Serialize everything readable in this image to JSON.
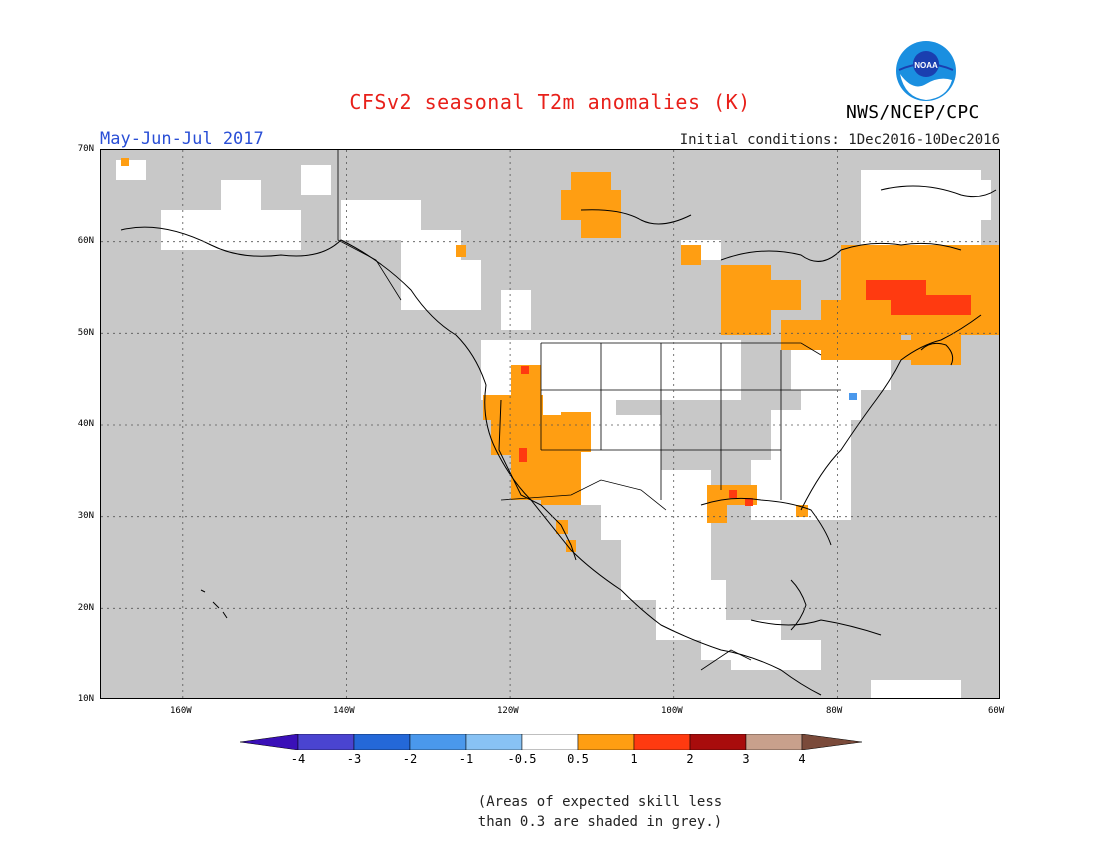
{
  "title": "CFSv2 seasonal T2m anomalies (K)",
  "agency": "NWS/NCEP/CPC",
  "logo_text": "NOAA",
  "period": "May-Jun-Jul 2017",
  "initial_conditions": "Initial conditions: 1Dec2016-10Dec2016",
  "lat_labels": [
    "70N",
    "60N",
    "50N",
    "40N",
    "30N",
    "20N",
    "10N"
  ],
  "lon_labels": [
    "160W",
    "140W",
    "120W",
    "100W",
    "80W",
    "60W"
  ],
  "colorbar": {
    "labels": [
      "-4",
      "-3",
      "-2",
      "-1",
      "-0.5",
      "0.5",
      "1",
      "2",
      "3",
      "4"
    ],
    "colors": [
      "#3a10b8",
      "#4a44d0",
      "#2468d8",
      "#4a98ec",
      "#88c2f4",
      "#ffffff",
      "#ff9e12",
      "#ff3a10",
      "#a80c0c",
      "#c8a08c",
      "#7a4a3a"
    ]
  },
  "note_line1": "(Areas of expected skill less",
  "note_line2": "than 0.3 are shaded in grey.)",
  "colors": {
    "grey": "#c8c8c8",
    "white": "#ffffff",
    "orange": "#ff9e12",
    "red": "#ff3a10",
    "blue": "#4a98ec"
  }
}
